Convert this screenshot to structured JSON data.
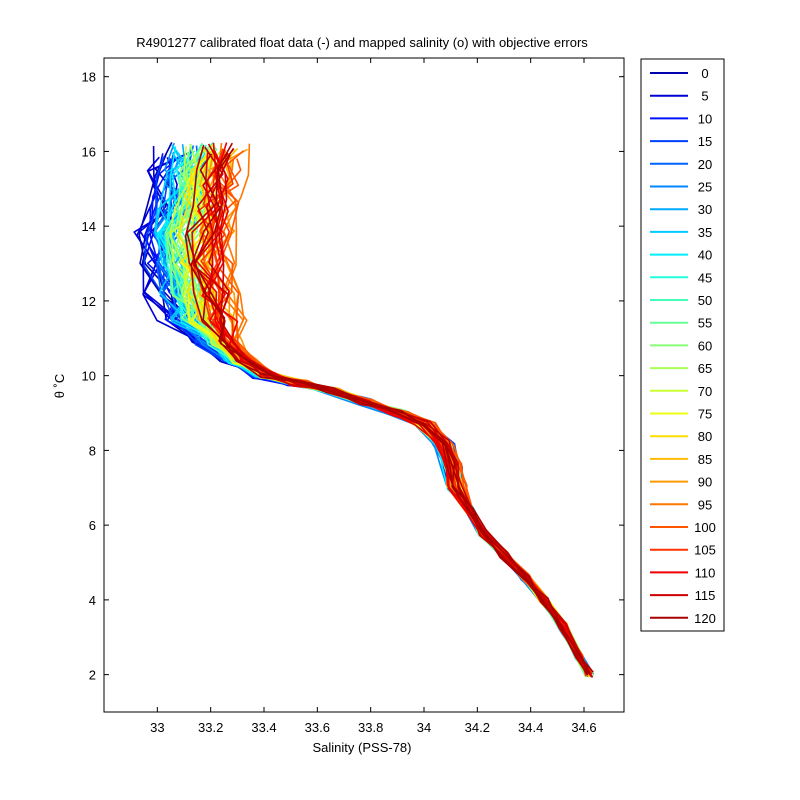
{
  "chart_data": {
    "type": "line",
    "title": "R4901277 calibrated float data (-) and mapped salinity (o) with objective errors",
    "xlabel": "Salinity (PSS-78)",
    "ylabel": "θ ˚C",
    "xlim": [
      32.8,
      34.75
    ],
    "ylim": [
      1,
      18.5
    ],
    "xticks": [
      "33",
      "33.2",
      "33.4",
      "33.6",
      "33.8",
      "34",
      "34.2",
      "34.4",
      "34.6"
    ],
    "yticks": [
      "2",
      "4",
      "6",
      "8",
      "10",
      "12",
      "14",
      "16",
      "18"
    ],
    "grid": false,
    "legend_placement": "outside-right",
    "colormap": "jet",
    "legend_entries": [
      "0",
      "5",
      "10",
      "15",
      "20",
      "25",
      "30",
      "35",
      "40",
      "45",
      "50",
      "55",
      "60",
      "65",
      "70",
      "75",
      "80",
      "85",
      "90",
      "95",
      "100",
      "105",
      "110",
      "115",
      "120"
    ],
    "legend_colors": [
      "#0000b0",
      "#0000d6",
      "#0012ff",
      "#0040ff",
      "#0064ff",
      "#0088ff",
      "#00aaff",
      "#00ccff",
      "#00eeff",
      "#22ffdd",
      "#44ffbb",
      "#66ff99",
      "#88ff77",
      "#aaff55",
      "#ccff33",
      "#eeff11",
      "#ffdd00",
      "#ffbb00",
      "#ff9900",
      "#ff7700",
      "#ff5500",
      "#ff3300",
      "#ee0000",
      "#cc0000",
      "#aa0000"
    ],
    "profile_shape": {
      "description_source": "read off axes",
      "salinity": [
        34.62,
        34.58,
        34.52,
        34.45,
        34.38,
        34.3,
        34.22,
        34.17,
        34.12,
        34.1,
        34.07,
        34.0,
        33.9,
        33.78,
        33.65,
        33.52,
        33.4,
        33.3,
        33.22,
        33.16,
        33.12,
        33.1,
        33.1,
        33.12,
        33.14,
        33.16
      ],
      "theta": [
        2.0,
        2.5,
        3.3,
        4.0,
        4.6,
        5.2,
        5.8,
        6.4,
        7.0,
        7.6,
        8.2,
        8.7,
        9.0,
        9.3,
        9.6,
        9.8,
        10.0,
        10.4,
        10.9,
        11.5,
        12.2,
        13.0,
        13.8,
        14.6,
        15.3,
        16.0
      ]
    },
    "profiles": [
      {
        "cycle": 0,
        "color": "#0000b0",
        "upper_offset": -0.1,
        "kink": 0.0
      },
      {
        "cycle": 5,
        "color": "#0000d6",
        "upper_offset": -0.12,
        "kink": 0.02
      },
      {
        "cycle": 10,
        "color": "#0012ff",
        "upper_offset": -0.08,
        "kink": -0.02
      },
      {
        "cycle": 15,
        "color": "#0040ff",
        "upper_offset": -0.09,
        "kink": 0.03
      },
      {
        "cycle": 20,
        "color": "#0064ff",
        "upper_offset": -0.04,
        "kink": 0.0
      },
      {
        "cycle": 25,
        "color": "#0088ff",
        "upper_offset": -0.06,
        "kink": -0.03
      },
      {
        "cycle": 30,
        "color": "#00aaff",
        "upper_offset": -0.02,
        "kink": 0.02
      },
      {
        "cycle": 35,
        "color": "#00ccff",
        "upper_offset": -0.05,
        "kink": 0.0
      },
      {
        "cycle": 40,
        "color": "#00eeff",
        "upper_offset": -0.03,
        "kink": -0.02
      },
      {
        "cycle": 45,
        "color": "#22ffdd",
        "upper_offset": -0.01,
        "kink": 0.01
      },
      {
        "cycle": 50,
        "color": "#44ffbb",
        "upper_offset": 0.0,
        "kink": 0.0
      },
      {
        "cycle": 55,
        "color": "#66ff99",
        "upper_offset": 0.01,
        "kink": -0.01
      },
      {
        "cycle": 60,
        "color": "#88ff77",
        "upper_offset": 0.0,
        "kink": 0.02
      },
      {
        "cycle": 65,
        "color": "#aaff55",
        "upper_offset": 0.02,
        "kink": 0.0
      },
      {
        "cycle": 70,
        "color": "#ccff33",
        "upper_offset": 0.01,
        "kink": -0.02
      },
      {
        "cycle": 75,
        "color": "#eeff11",
        "upper_offset": 0.03,
        "kink": 0.01
      },
      {
        "cycle": 80,
        "color": "#ffdd00",
        "upper_offset": 0.04,
        "kink": 0.0
      },
      {
        "cycle": 85,
        "color": "#ffbb00",
        "upper_offset": 0.08,
        "kink": 0.02
      },
      {
        "cycle": 90,
        "color": "#ff9900",
        "upper_offset": 0.12,
        "kink": -0.01
      },
      {
        "cycle": 95,
        "color": "#ff7700",
        "upper_offset": 0.14,
        "kink": 0.0
      },
      {
        "cycle": 100,
        "color": "#ff5500",
        "upper_offset": 0.12,
        "kink": 0.03
      },
      {
        "cycle": 105,
        "color": "#ff3300",
        "upper_offset": 0.1,
        "kink": 0.0
      },
      {
        "cycle": 110,
        "color": "#ee0000",
        "upper_offset": 0.09,
        "kink": -0.02
      },
      {
        "cycle": 115,
        "color": "#cc0000",
        "upper_offset": 0.08,
        "kink": 0.02
      },
      {
        "cycle": 120,
        "color": "#aa0000",
        "upper_offset": 0.07,
        "kink": 0.0
      }
    ]
  }
}
